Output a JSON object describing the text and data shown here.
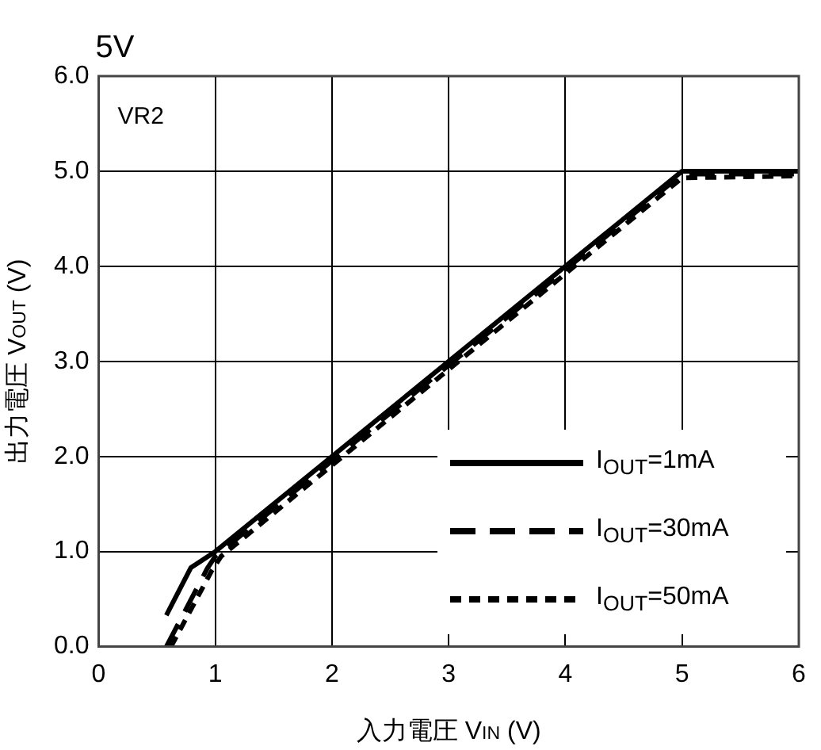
{
  "chart_data": {
    "type": "line",
    "title": "5V",
    "xlabel": "入力電圧 V$_{IN}$ (V)",
    "ylabel": "出力電圧 V$_{OUT}$ (V)",
    "annotations": [
      "VR2"
    ],
    "xlim": [
      0,
      6
    ],
    "xticks": [
      0,
      1,
      2,
      3,
      4,
      5,
      6
    ],
    "ylim": [
      0,
      6
    ],
    "yticks": [
      {
        "value": 0,
        "label": "0.0"
      },
      {
        "value": 1,
        "label": "1.0"
      },
      {
        "value": 2,
        "label": "2.0"
      },
      {
        "value": 3,
        "label": "3.0"
      },
      {
        "value": 4,
        "label": "4.0"
      },
      {
        "value": 5,
        "label": "5.0"
      },
      {
        "value": 6,
        "label": "6.0"
      }
    ],
    "grid": true,
    "legend": "bottom right",
    "marker": "none",
    "series": [
      {
        "name": "I$_{OUT}$=1mA",
        "color": "#000000",
        "line_style": "solid",
        "x": [
          0.58,
          0.79,
          1,
          5,
          6
        ],
        "values": [
          0.33,
          0.83,
          1,
          5,
          5
        ]
      },
      {
        "name": "I$_{OUT}$=30mA",
        "color": "#000000",
        "line_style": "dashed",
        "x": [
          0.58,
          0.93,
          1,
          5,
          6
        ],
        "values": [
          0,
          0.82,
          0.95,
          4.97,
          4.97
        ]
      },
      {
        "name": "I$_{OUT}$=50mA",
        "color": "#000000",
        "line_style": "dotted",
        "x": [
          0.62,
          0.97,
          1.05,
          5,
          6
        ],
        "values": [
          0,
          0.8,
          0.95,
          4.93,
          4.95
        ]
      }
    ]
  }
}
